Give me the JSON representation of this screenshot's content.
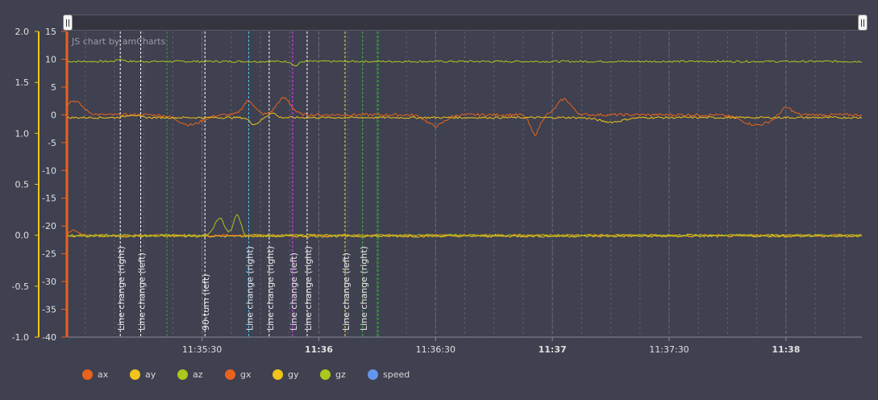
{
  "credit": "JS chart by amCharts",
  "chart_data": {
    "type": "line",
    "left_axis_outer": {
      "ticks": [
        "2.0",
        "1.5",
        "1.0",
        "0.5",
        "0.0",
        "-0.5",
        "-1.0"
      ],
      "range": [
        -1.0,
        2.0
      ],
      "color": "#f0c419"
    },
    "left_axis_inner": {
      "ticks": [
        "15",
        "10",
        "5",
        "0",
        "-5",
        "-10",
        "-15",
        "-20",
        "-25",
        "-30",
        "-35",
        "-40"
      ],
      "range": [
        -40,
        15
      ],
      "color": "#e8631c"
    },
    "x_ticks": [
      {
        "label": "11:35:30",
        "bold": false
      },
      {
        "label": "11:36",
        "bold": true
      },
      {
        "label": "11:36:30",
        "bold": false
      },
      {
        "label": "11:37",
        "bold": true
      },
      {
        "label": "11:37:30",
        "bold": false
      },
      {
        "label": "11:38",
        "bold": true
      }
    ],
    "x_range_seconds": [
      1107,
      1243
    ],
    "events": [
      {
        "label": "Line change (right)",
        "t": 1116,
        "color": "#ffffff"
      },
      {
        "label": "Line change (left)",
        "t": 1119.5,
        "color": "#ffffff"
      },
      {
        "label": "90-turn (left)",
        "t": 1130.5,
        "color": "#ffffff"
      },
      {
        "label": "Line change (right)",
        "t": 1138,
        "color": "#4fc3f7"
      },
      {
        "label": "Line change (right)",
        "t": 1141.5,
        "color": "#ffffff"
      },
      {
        "label": "Line change (left)",
        "t": 1145.5,
        "color": "#e040fb"
      },
      {
        "label": "Line change (right)",
        "t": 1148,
        "color": "#ffffff"
      },
      {
        "label": "Line change (left)",
        "t": 1154.5,
        "color": "#f0e040"
      },
      {
        "label": "Line change (right)",
        "t": 1157.5,
        "color": "#4caf50"
      }
    ],
    "series": [
      {
        "name": "ax",
        "color": "#e8631c",
        "approx_level": 0.0
      },
      {
        "name": "ay",
        "color": "#f0c419",
        "approx_level": 0.0
      },
      {
        "name": "az",
        "color": "#a8c81c",
        "approx_level": 9.5
      },
      {
        "name": "gx",
        "color": "#e8631c",
        "approx_level": 0.0
      },
      {
        "name": "gy",
        "color": "#f0c419",
        "approx_level": 0.0
      },
      {
        "name": "gz",
        "color": "#a8c81c",
        "approx_level": 0.0
      },
      {
        "name": "speed",
        "color": "#6495ed"
      }
    ]
  },
  "legend": [
    {
      "name": "ax",
      "color": "#e8631c"
    },
    {
      "name": "ay",
      "color": "#f0c419"
    },
    {
      "name": "az",
      "color": "#a8c81c"
    },
    {
      "name": "gx",
      "color": "#e8631c"
    },
    {
      "name": "gy",
      "color": "#f0c419"
    },
    {
      "name": "gz",
      "color": "#a8c81c"
    },
    {
      "name": "speed",
      "color": "#6495ed"
    }
  ]
}
